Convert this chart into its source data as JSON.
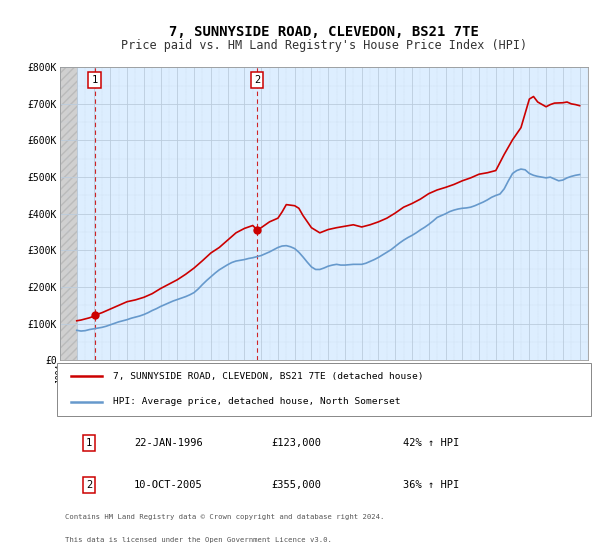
{
  "title": "7, SUNNYSIDE ROAD, CLEVEDON, BS21 7TE",
  "subtitle": "Price paid vs. HM Land Registry's House Price Index (HPI)",
  "ylim": [
    0,
    800000
  ],
  "xlim": [
    1994,
    2025.5
  ],
  "yticks": [
    0,
    100000,
    200000,
    300000,
    400000,
    500000,
    600000,
    700000,
    800000
  ],
  "ytick_labels": [
    "£0",
    "£100K",
    "£200K",
    "£300K",
    "£400K",
    "£500K",
    "£600K",
    "£700K",
    "£800K"
  ],
  "xticks": [
    1994,
    1995,
    1996,
    1997,
    1998,
    1999,
    2000,
    2001,
    2002,
    2003,
    2004,
    2005,
    2006,
    2007,
    2008,
    2009,
    2010,
    2011,
    2012,
    2013,
    2014,
    2015,
    2016,
    2017,
    2018,
    2019,
    2020,
    2021,
    2022,
    2023,
    2024,
    2025
  ],
  "transaction1_date": 1996.06,
  "transaction1_price": 123000,
  "transaction1_label": "1",
  "transaction2_date": 2005.78,
  "transaction2_price": 355000,
  "transaction2_label": "2",
  "legend_line1": "7, SUNNYSIDE ROAD, CLEVEDON, BS21 7TE (detached house)",
  "legend_line2": "HPI: Average price, detached house, North Somerset",
  "table_row1": [
    "1",
    "22-JAN-1996",
    "£123,000",
    "42% ↑ HPI"
  ],
  "table_row2": [
    "2",
    "10-OCT-2005",
    "£355,000",
    "36% ↑ HPI"
  ],
  "footer1": "Contains HM Land Registry data © Crown copyright and database right 2024.",
  "footer2": "This data is licensed under the Open Government Licence v3.0.",
  "line_color_red": "#cc0000",
  "line_color_blue": "#6699cc",
  "bg_main_color": "#ddeeff",
  "bg_hatch_color": "#d0d0d0",
  "grid_color": "#bbccdd",
  "hatch_end": 1995.0,
  "title_fontsize": 10,
  "subtitle_fontsize": 8.5,
  "hpi_data_x": [
    1995.0,
    1995.25,
    1995.5,
    1995.75,
    1996.0,
    1996.25,
    1996.5,
    1996.75,
    1997.0,
    1997.25,
    1997.5,
    1997.75,
    1998.0,
    1998.25,
    1998.5,
    1998.75,
    1999.0,
    1999.25,
    1999.5,
    1999.75,
    2000.0,
    2000.25,
    2000.5,
    2000.75,
    2001.0,
    2001.25,
    2001.5,
    2001.75,
    2002.0,
    2002.25,
    2002.5,
    2002.75,
    2003.0,
    2003.25,
    2003.5,
    2003.75,
    2004.0,
    2004.25,
    2004.5,
    2004.75,
    2005.0,
    2005.25,
    2005.5,
    2005.75,
    2006.0,
    2006.25,
    2006.5,
    2006.75,
    2007.0,
    2007.25,
    2007.5,
    2007.75,
    2008.0,
    2008.25,
    2008.5,
    2008.75,
    2009.0,
    2009.25,
    2009.5,
    2009.75,
    2010.0,
    2010.25,
    2010.5,
    2010.75,
    2011.0,
    2011.25,
    2011.5,
    2011.75,
    2012.0,
    2012.25,
    2012.5,
    2012.75,
    2013.0,
    2013.25,
    2013.5,
    2013.75,
    2014.0,
    2014.25,
    2014.5,
    2014.75,
    2015.0,
    2015.25,
    2015.5,
    2015.75,
    2016.0,
    2016.25,
    2016.5,
    2016.75,
    2017.0,
    2017.25,
    2017.5,
    2017.75,
    2018.0,
    2018.25,
    2018.5,
    2018.75,
    2019.0,
    2019.25,
    2019.5,
    2019.75,
    2020.0,
    2020.25,
    2020.5,
    2020.75,
    2021.0,
    2021.25,
    2021.5,
    2021.75,
    2022.0,
    2022.25,
    2022.5,
    2022.75,
    2023.0,
    2023.25,
    2023.5,
    2023.75,
    2024.0,
    2024.25,
    2024.5,
    2024.75,
    2025.0
  ],
  "hpi_data_y": [
    82000,
    80000,
    81000,
    84000,
    86000,
    88000,
    90000,
    93000,
    97000,
    101000,
    105000,
    108000,
    111000,
    115000,
    118000,
    121000,
    125000,
    130000,
    136000,
    141000,
    147000,
    152000,
    157000,
    162000,
    166000,
    170000,
    174000,
    179000,
    185000,
    195000,
    207000,
    218000,
    228000,
    238000,
    247000,
    254000,
    261000,
    267000,
    271000,
    273000,
    275000,
    278000,
    280000,
    283000,
    286000,
    291000,
    296000,
    302000,
    308000,
    312000,
    313000,
    310000,
    305000,
    295000,
    282000,
    268000,
    255000,
    248000,
    248000,
    252000,
    257000,
    260000,
    262000,
    260000,
    260000,
    261000,
    262000,
    262000,
    262000,
    265000,
    270000,
    275000,
    281000,
    288000,
    295000,
    302000,
    311000,
    320000,
    328000,
    335000,
    341000,
    348000,
    356000,
    363000,
    371000,
    380000,
    390000,
    395000,
    400000,
    406000,
    410000,
    413000,
    415000,
    416000,
    418000,
    422000,
    427000,
    432000,
    438000,
    445000,
    450000,
    454000,
    468000,
    490000,
    510000,
    518000,
    522000,
    520000,
    510000,
    505000,
    502000,
    500000,
    498000,
    500000,
    495000,
    490000,
    492000,
    498000,
    502000,
    505000,
    507000
  ],
  "price_data_x": [
    1996.06,
    2005.78
  ],
  "price_data_y": [
    123000,
    355000
  ],
  "price_line_x": [
    1995.0,
    1995.25,
    1995.5,
    1995.75,
    1996.0,
    1996.06,
    1996.25,
    1996.5,
    1996.75,
    1997.0,
    1997.5,
    1998.0,
    1998.5,
    1999.0,
    1999.5,
    2000.0,
    2000.5,
    2001.0,
    2001.5,
    2002.0,
    2002.5,
    2003.0,
    2003.5,
    2004.0,
    2004.5,
    2005.0,
    2005.5,
    2005.78,
    2006.0,
    2006.5,
    2007.0,
    2007.25,
    2007.5,
    2008.0,
    2008.25,
    2008.5,
    2009.0,
    2009.5,
    2010.0,
    2010.5,
    2011.0,
    2011.5,
    2012.0,
    2012.5,
    2013.0,
    2013.5,
    2014.0,
    2014.5,
    2015.0,
    2015.5,
    2016.0,
    2016.5,
    2017.0,
    2017.5,
    2018.0,
    2018.5,
    2019.0,
    2019.5,
    2020.0,
    2020.5,
    2021.0,
    2021.5,
    2022.0,
    2022.25,
    2022.5,
    2023.0,
    2023.25,
    2023.5,
    2024.0,
    2024.25,
    2024.5,
    2024.75,
    2025.0
  ],
  "price_line_y": [
    108000,
    110000,
    113000,
    116000,
    120000,
    123000,
    126000,
    130000,
    135000,
    140000,
    150000,
    160000,
    165000,
    172000,
    182000,
    196000,
    208000,
    220000,
    235000,
    252000,
    272000,
    293000,
    308000,
    328000,
    348000,
    360000,
    368000,
    355000,
    362000,
    378000,
    388000,
    405000,
    425000,
    422000,
    415000,
    395000,
    362000,
    348000,
    357000,
    362000,
    366000,
    370000,
    364000,
    370000,
    378000,
    388000,
    402000,
    418000,
    428000,
    440000,
    455000,
    465000,
    472000,
    480000,
    490000,
    498000,
    508000,
    512000,
    518000,
    562000,
    602000,
    635000,
    713000,
    720000,
    705000,
    692000,
    698000,
    702000,
    703000,
    705000,
    700000,
    698000,
    695000
  ]
}
